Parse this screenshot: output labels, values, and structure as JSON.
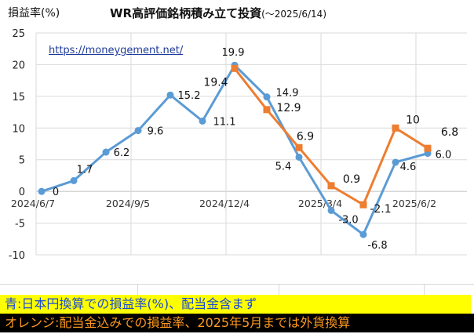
{
  "header": {
    "ylabel": "損益率(%)",
    "title": "WR高評価銘柄積み立て投資",
    "title_paren": "(～2025/6/14)",
    "url": "https://moneygement.net/"
  },
  "legend": {
    "blue_text": "青:日本円換算での損益率(%)、配当金含まず",
    "orange_text": "オレンジ:配当金込みでの損益率、2025年5月までは外貨換算"
  },
  "chart_data": {
    "type": "line",
    "title": "WR高評価銘柄積み立て投資",
    "ylabel": "損益率(%)",
    "ylim": [
      -10,
      25
    ],
    "yticks": [
      -10,
      -5,
      0,
      5,
      10,
      15,
      20,
      25
    ],
    "x_tick_labels": [
      "2024/6/7",
      "2024/9/5",
      "2024/12/4",
      "2025/3/4",
      "2025/6/2"
    ],
    "grid": true,
    "series": [
      {
        "color": "#5b9bd5",
        "marker": "circle",
        "x": [
          0,
          1,
          2,
          3,
          4,
          5,
          6,
          7,
          8,
          9,
          10,
          11,
          12
        ],
        "values": [
          0,
          1.7,
          6.2,
          9.6,
          15.2,
          11.1,
          19.9,
          14.9,
          5.4,
          -3.0,
          -6.8,
          4.6,
          6.0
        ],
        "labels": [
          "0",
          "1.7",
          "6.2",
          "9.6",
          "15.2",
          "11.1",
          "19.9",
          "14.9",
          "5.4",
          "-3.0",
          "-6.8",
          "4.6",
          "6.0"
        ]
      },
      {
        "color": "#ed7d31",
        "marker": "square",
        "x": [
          6,
          7,
          8,
          9,
          10,
          11,
          12
        ],
        "values": [
          19.4,
          12.9,
          6.9,
          0.9,
          -2.1,
          10,
          6.8
        ],
        "labels": [
          "19.4",
          "12.9",
          "6.9",
          "0.9",
          "-2.1",
          "10",
          "6.8"
        ]
      }
    ]
  }
}
